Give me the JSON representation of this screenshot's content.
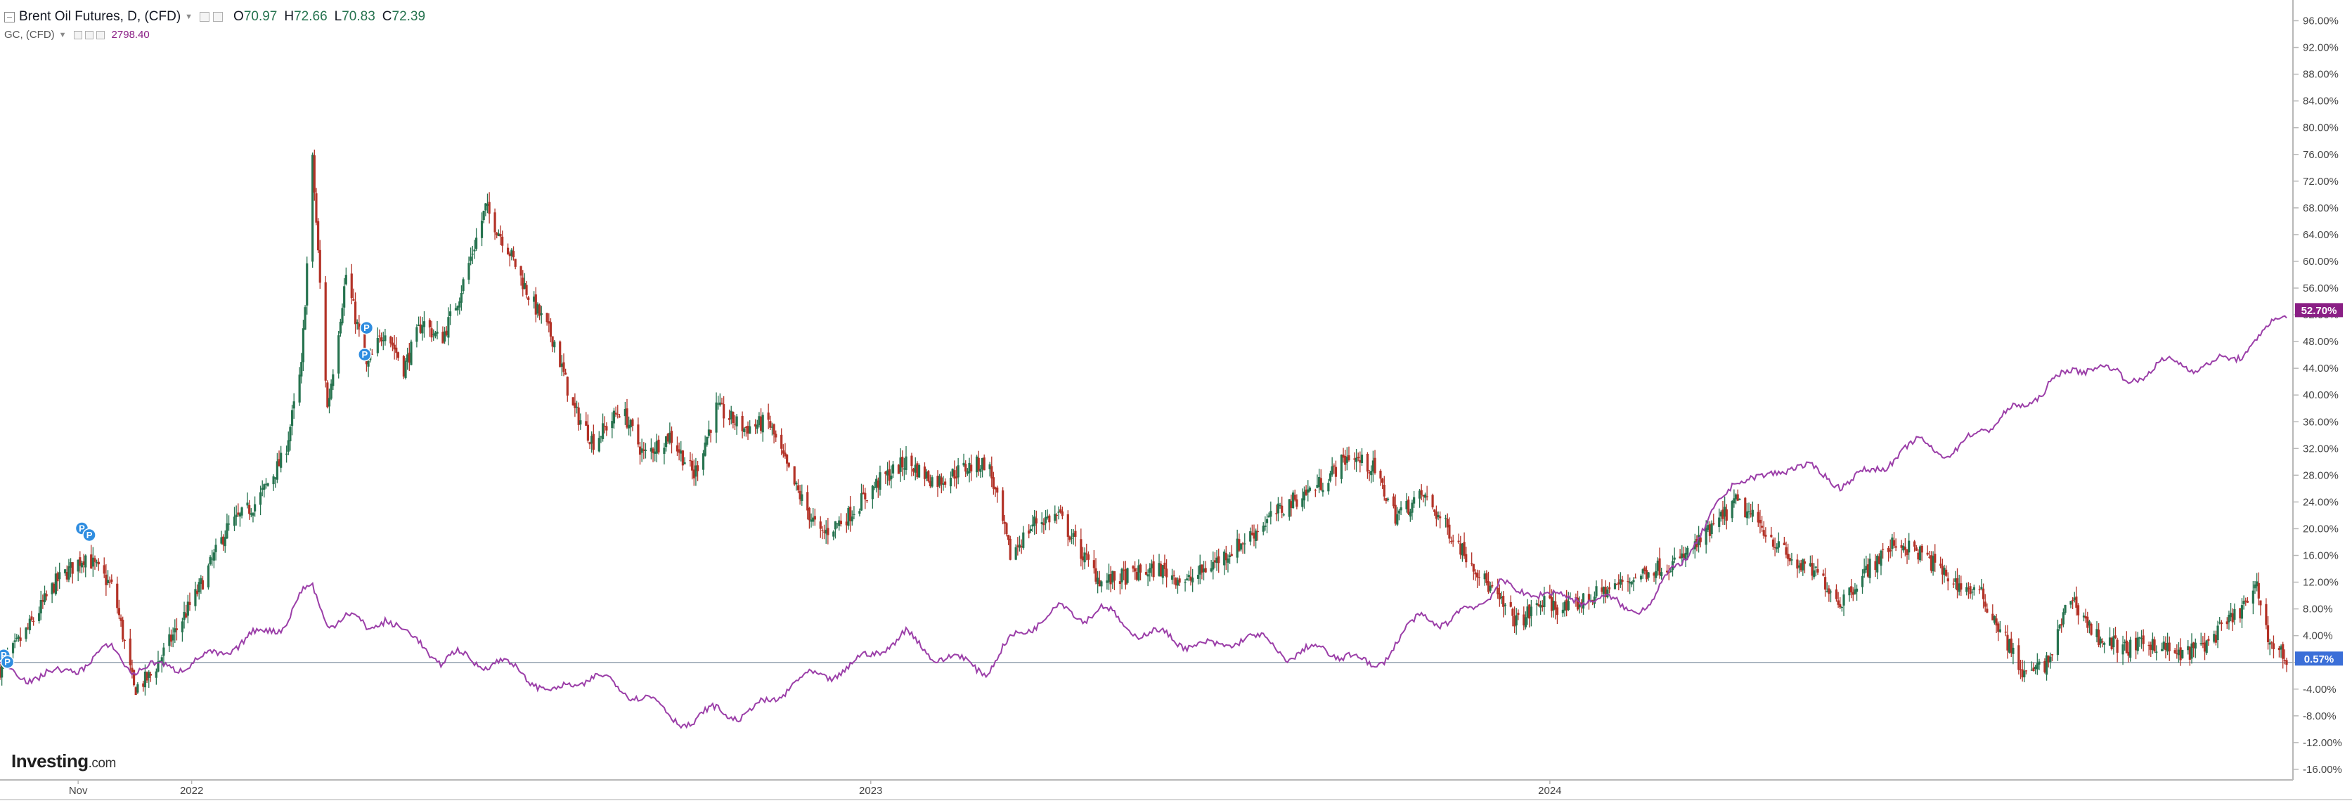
{
  "legend": {
    "title": "Brent Oil Futures, D, (CFD)",
    "ohlc": [
      {
        "key": "O",
        "value": "70.97"
      },
      {
        "key": "H",
        "value": "72.66"
      },
      {
        "key": "L",
        "value": "70.83"
      },
      {
        "key": "C",
        "value": "72.39"
      }
    ],
    "compare_label": "GC, (CFD)",
    "compare_value": "2798.40"
  },
  "logo": {
    "name": "Investing",
    "suffix": ".com"
  },
  "colors": {
    "up": "#26734f",
    "down": "#b33227",
    "compare": "#9b3ea8",
    "baseline": "#9aa7b4",
    "badge_compare": "#8a1f85",
    "badge_main": "#3b6fd8",
    "event": "#2f8de0"
  },
  "chart_data": {
    "type": "line",
    "y_axis": {
      "unit": "%",
      "range": [
        -16,
        96
      ],
      "ticks": [
        "96.00%",
        "92.00%",
        "88.00%",
        "84.00%",
        "80.00%",
        "76.00%",
        "72.00%",
        "68.00%",
        "64.00%",
        "60.00%",
        "56.00%",
        "52.00%",
        "48.00%",
        "44.00%",
        "40.00%",
        "36.00%",
        "32.00%",
        "28.00%",
        "24.00%",
        "20.00%",
        "16.00%",
        "12.00%",
        "8.00%",
        "4.00%",
        "",
        "-4.00%",
        "-8.00%",
        "-12.00%",
        "-16.00%"
      ]
    },
    "x_axis": {
      "range": [
        "2021-09-20",
        "2025-01-31"
      ],
      "ticks": [
        {
          "date": "2021-11-01",
          "label": "Nov"
        },
        {
          "date": "2022-01-01",
          "label": "2022"
        },
        {
          "date": "2023-01-01",
          "label": "2023"
        },
        {
          "date": "2024-01-01",
          "label": "2024"
        }
      ]
    },
    "series": [
      {
        "kind": "candlestick",
        "points": [
          [
            "2021-09-20",
            -1
          ],
          [
            "2021-10-05",
            5
          ],
          [
            "2021-10-20",
            12
          ],
          [
            "2021-11-05",
            16
          ],
          [
            "2021-11-20",
            11
          ],
          [
            "2021-12-01",
            -4
          ],
          [
            "2021-12-10",
            -2
          ],
          [
            "2021-12-20",
            3
          ],
          [
            "2022-01-05",
            11
          ],
          [
            "2022-01-20",
            20
          ],
          [
            "2022-02-05",
            24
          ],
          [
            "2022-02-20",
            31
          ],
          [
            "2022-03-01",
            44
          ],
          [
            "2022-03-07",
            75
          ],
          [
            "2022-03-15",
            38
          ],
          [
            "2022-03-25",
            58
          ],
          [
            "2022-04-05",
            44
          ],
          [
            "2022-04-15",
            50
          ],
          [
            "2022-04-25",
            44
          ],
          [
            "2022-05-05",
            51
          ],
          [
            "2022-05-15",
            48
          ],
          [
            "2022-05-25",
            55
          ],
          [
            "2022-06-08",
            68
          ],
          [
            "2022-06-20",
            62
          ],
          [
            "2022-07-01",
            55
          ],
          [
            "2022-07-15",
            48
          ],
          [
            "2022-07-25",
            38
          ],
          [
            "2022-08-05",
            33
          ],
          [
            "2022-08-20",
            38
          ],
          [
            "2022-09-01",
            31
          ],
          [
            "2022-09-15",
            34
          ],
          [
            "2022-09-28",
            28
          ],
          [
            "2022-10-10",
            38
          ],
          [
            "2022-10-25",
            35
          ],
          [
            "2022-11-07",
            36
          ],
          [
            "2022-11-20",
            27
          ],
          [
            "2022-12-05",
            19
          ],
          [
            "2022-12-20",
            22
          ],
          [
            "2023-01-05",
            27
          ],
          [
            "2023-01-20",
            30
          ],
          [
            "2023-02-05",
            27
          ],
          [
            "2023-02-20",
            29
          ],
          [
            "2023-03-05",
            30
          ],
          [
            "2023-03-17",
            16
          ],
          [
            "2023-03-30",
            21
          ],
          [
            "2023-04-12",
            22
          ],
          [
            "2023-04-25",
            16
          ],
          [
            "2023-05-05",
            12
          ],
          [
            "2023-05-20",
            13
          ],
          [
            "2023-06-05",
            14
          ],
          [
            "2023-06-20",
            12
          ],
          [
            "2023-07-05",
            15
          ],
          [
            "2023-07-20",
            18
          ],
          [
            "2023-08-01",
            21
          ],
          [
            "2023-08-15",
            24
          ],
          [
            "2023-09-01",
            27
          ],
          [
            "2023-09-15",
            31
          ],
          [
            "2023-09-28",
            29
          ],
          [
            "2023-10-10",
            22
          ],
          [
            "2023-10-25",
            25
          ],
          [
            "2023-11-07",
            20
          ],
          [
            "2023-11-20",
            15
          ],
          [
            "2023-12-05",
            9
          ],
          [
            "2023-12-15",
            6
          ],
          [
            "2023-12-28",
            9
          ],
          [
            "2024-01-10",
            8
          ],
          [
            "2024-01-25",
            10
          ],
          [
            "2024-02-10",
            12
          ],
          [
            "2024-02-25",
            14
          ],
          [
            "2024-03-10",
            15
          ],
          [
            "2024-03-25",
            19
          ],
          [
            "2024-04-10",
            24
          ],
          [
            "2024-04-25",
            20
          ],
          [
            "2024-05-10",
            15
          ],
          [
            "2024-05-25",
            13
          ],
          [
            "2024-06-05",
            9
          ],
          [
            "2024-06-20",
            14
          ],
          [
            "2024-07-05",
            18
          ],
          [
            "2024-07-20",
            16
          ],
          [
            "2024-08-05",
            12
          ],
          [
            "2024-08-20",
            10
          ],
          [
            "2024-09-01",
            4
          ],
          [
            "2024-09-12",
            -2
          ],
          [
            "2024-09-25",
            0
          ],
          [
            "2024-10-07",
            10
          ],
          [
            "2024-10-20",
            4
          ],
          [
            "2024-11-05",
            2
          ],
          [
            "2024-11-20",
            3
          ],
          [
            "2024-12-05",
            1
          ],
          [
            "2024-12-20",
            3
          ],
          [
            "2025-01-10",
            9
          ],
          [
            "2025-01-15",
            11
          ],
          [
            "2025-01-22",
            3
          ],
          [
            "2025-01-31",
            0.57
          ]
        ],
        "last_label": "0.57%"
      },
      {
        "kind": "line",
        "points": [
          [
            "2021-09-20",
            -1
          ],
          [
            "2021-10-05",
            -2
          ],
          [
            "2021-10-20",
            -2
          ],
          [
            "2021-11-05",
            0
          ],
          [
            "2021-11-20",
            2
          ],
          [
            "2021-12-01",
            -1
          ],
          [
            "2021-12-10",
            -1
          ],
          [
            "2021-12-20",
            -0.5
          ],
          [
            "2022-01-05",
            0
          ],
          [
            "2022-01-20",
            2
          ],
          [
            "2022-02-05",
            4
          ],
          [
            "2022-02-20",
            6
          ],
          [
            "2022-03-01",
            10
          ],
          [
            "2022-03-07",
            11
          ],
          [
            "2022-03-15",
            6
          ],
          [
            "2022-03-25",
            7
          ],
          [
            "2022-04-05",
            5
          ],
          [
            "2022-04-15",
            7
          ],
          [
            "2022-04-25",
            4
          ],
          [
            "2022-05-05",
            3
          ],
          [
            "2022-05-15",
            0
          ],
          [
            "2022-05-25",
            1
          ],
          [
            "2022-06-08",
            0
          ],
          [
            "2022-06-20",
            -0.5
          ],
          [
            "2022-07-01",
            -2
          ],
          [
            "2022-07-15",
            -5
          ],
          [
            "2022-07-25",
            -3
          ],
          [
            "2022-08-05",
            -2
          ],
          [
            "2022-08-20",
            -4
          ],
          [
            "2022-09-01",
            -5
          ],
          [
            "2022-09-15",
            -8
          ],
          [
            "2022-09-28",
            -9
          ],
          [
            "2022-10-10",
            -7
          ],
          [
            "2022-10-25",
            -8
          ],
          [
            "2022-11-07",
            -6
          ],
          [
            "2022-11-20",
            -3
          ],
          [
            "2022-12-05",
            -2
          ],
          [
            "2022-12-20",
            -1
          ],
          [
            "2023-01-05",
            2
          ],
          [
            "2023-01-20",
            4
          ],
          [
            "2023-02-05",
            1
          ],
          [
            "2023-02-20",
            0
          ],
          [
            "2023-03-05",
            -1
          ],
          [
            "2023-03-17",
            3
          ],
          [
            "2023-03-30",
            6
          ],
          [
            "2023-04-12",
            8
          ],
          [
            "2023-04-25",
            7
          ],
          [
            "2023-05-05",
            8
          ],
          [
            "2023-05-20",
            5
          ],
          [
            "2023-06-05",
            4
          ],
          [
            "2023-06-20",
            3
          ],
          [
            "2023-07-05",
            2
          ],
          [
            "2023-07-20",
            4
          ],
          [
            "2023-08-01",
            3
          ],
          [
            "2023-08-15",
            1
          ],
          [
            "2023-09-01",
            2
          ],
          [
            "2023-09-15",
            1
          ],
          [
            "2023-09-28",
            -1
          ],
          [
            "2023-10-10",
            3
          ],
          [
            "2023-10-25",
            7
          ],
          [
            "2023-11-07",
            6
          ],
          [
            "2023-11-20",
            8
          ],
          [
            "2023-12-05",
            12
          ],
          [
            "2023-12-15",
            10
          ],
          [
            "2023-12-28",
            11
          ],
          [
            "2024-01-10",
            9
          ],
          [
            "2024-01-25",
            10
          ],
          [
            "2024-02-10",
            8
          ],
          [
            "2024-02-25",
            9
          ],
          [
            "2024-03-10",
            15
          ],
          [
            "2024-03-25",
            20
          ],
          [
            "2024-04-10",
            28
          ],
          [
            "2024-04-25",
            27
          ],
          [
            "2024-05-10",
            30
          ],
          [
            "2024-05-25",
            28
          ],
          [
            "2024-06-05",
            27
          ],
          [
            "2024-06-20",
            28
          ],
          [
            "2024-07-05",
            31
          ],
          [
            "2024-07-20",
            33
          ],
          [
            "2024-08-05",
            31
          ],
          [
            "2024-08-20",
            35
          ],
          [
            "2024-09-01",
            37
          ],
          [
            "2024-09-12",
            38
          ],
          [
            "2024-09-25",
            42
          ],
          [
            "2024-10-07",
            43
          ],
          [
            "2024-10-20",
            45
          ],
          [
            "2024-11-05",
            42
          ],
          [
            "2024-11-20",
            44
          ],
          [
            "2024-12-05",
            45
          ],
          [
            "2024-12-20",
            44
          ],
          [
            "2025-01-10",
            47
          ],
          [
            "2025-01-15",
            48
          ],
          [
            "2025-01-22",
            50
          ],
          [
            "2025-01-31",
            52.7
          ]
        ],
        "last_label": "52.70%"
      }
    ],
    "baseline_value": 0,
    "annotations": [
      {
        "date": "2021-09-22",
        "value": 0,
        "label": "P"
      },
      {
        "date": "2021-09-24",
        "value": -1,
        "label": "P"
      },
      {
        "date": "2021-11-03",
        "value": 19,
        "label": "P"
      },
      {
        "date": "2021-11-07",
        "value": 18,
        "label": "P"
      },
      {
        "date": "2022-04-05",
        "value": 49,
        "label": "P"
      },
      {
        "date": "2022-04-04",
        "value": 45,
        "label": "P"
      }
    ],
    "grid": false,
    "legend": "top-left"
  }
}
